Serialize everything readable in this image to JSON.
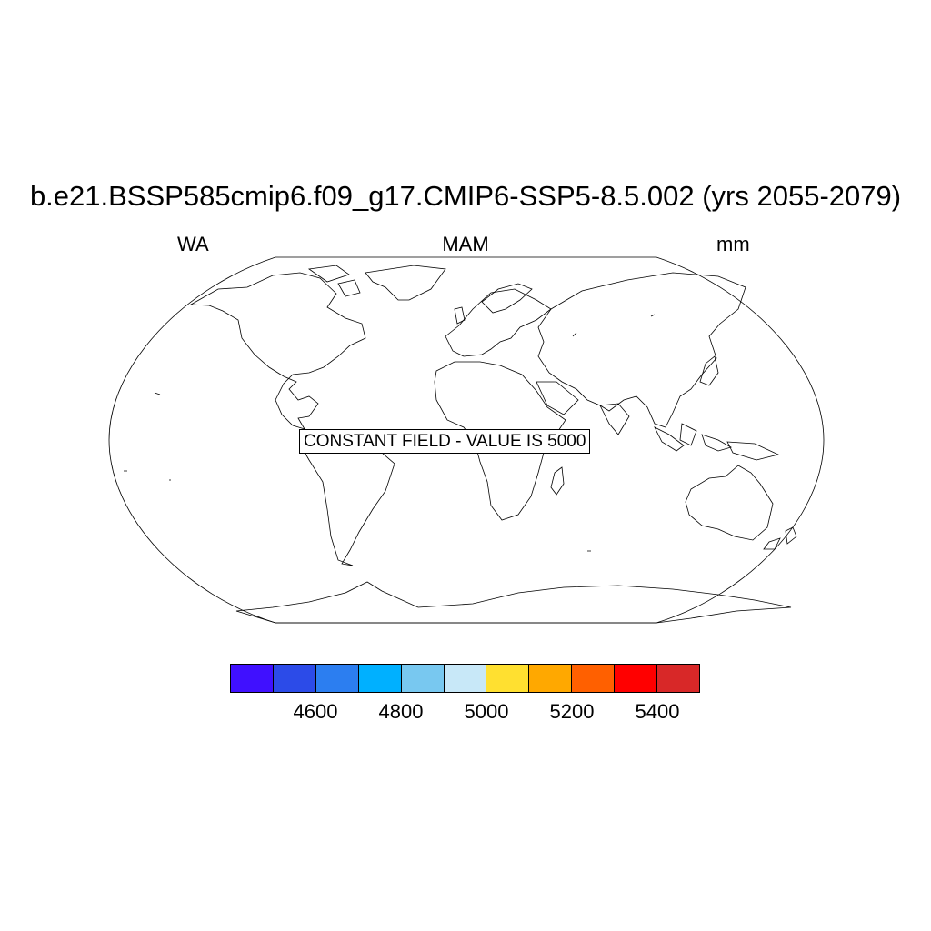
{
  "title": "b.e21.BSSP585cmip6.f09_g17.CMIP6-SSP5-8.5.002 (yrs 2055-2079)",
  "subtitle_left": "WA",
  "subtitle_center": "MAM",
  "subtitle_right": "mm",
  "map_label": "CONSTANT FIELD - VALUE IS 5000",
  "projection": "Robinson",
  "colorbar": {
    "colors": [
      "#4010ff",
      "#2c4be8",
      "#2c7ef0",
      "#00b0ff",
      "#78c8f0",
      "#c8e8f8",
      "#ffe030",
      "#ffa800",
      "#ff6000",
      "#ff0000",
      "#d82828"
    ],
    "ticks": [
      "4600",
      "4800",
      "5000",
      "5200",
      "5400"
    ]
  }
}
